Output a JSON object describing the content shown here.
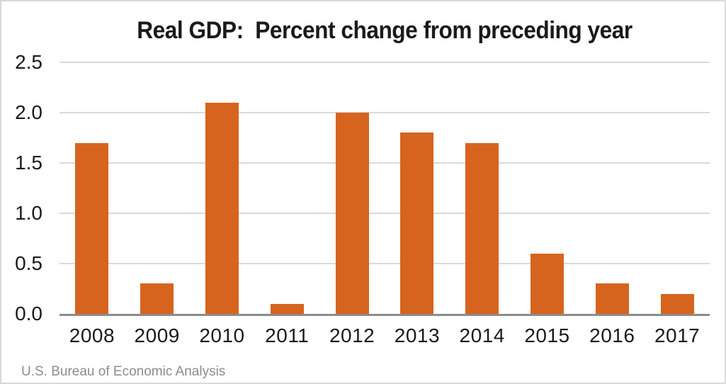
{
  "window": {
    "background": "#ffffff",
    "border_color": "#d9d9d9"
  },
  "chart_data": {
    "type": "bar",
    "title": "Real GDP:  Percent change from preceding year",
    "categories": [
      "2008",
      "2009",
      "2010",
      "2011",
      "2012",
      "2013",
      "2014",
      "2015",
      "2016",
      "2017"
    ],
    "values": [
      1.7,
      0.3,
      2.1,
      0.1,
      2.0,
      1.8,
      1.7,
      0.6,
      0.3,
      0.2
    ],
    "xlabel": "",
    "ylabel": "",
    "ylim": [
      0,
      2.5
    ],
    "ytick_interval": 0.5,
    "ytick_labels": [
      "0.0",
      "0.5",
      "1.0",
      "1.5",
      "2.0",
      "2.5"
    ],
    "grid": true,
    "legend_position": "none",
    "bar_color": "#d6641e",
    "gridline_color": "#d9d9d9",
    "axis_line_color": "#8c8c8c",
    "source": "U.S. Bureau of Economic Analysis"
  }
}
